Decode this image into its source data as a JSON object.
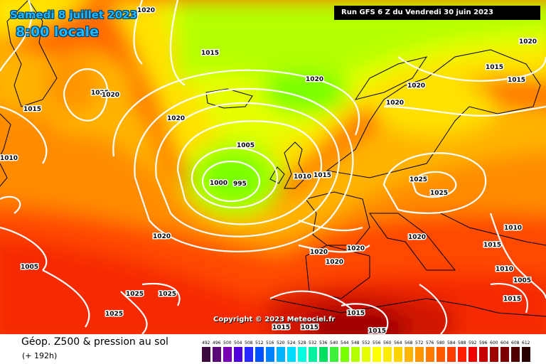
{
  "header": {
    "date": "Samedi 8 juillet 2023",
    "time": "8:00 locale",
    "run": "Run GFS 6 Z du Vendredi 30 juin 2023"
  },
  "copyright": "Copyright © 2023 Meteociel.fr",
  "footer": {
    "product": "Géop. Z500 & pression au sol",
    "forecast_hours": "(+ 192h)"
  },
  "legend": {
    "ticks": [
      "492",
      "496",
      "500",
      "504",
      "508",
      "512",
      "516",
      "520",
      "524",
      "528",
      "532",
      "536",
      "540",
      "544",
      "548",
      "552",
      "556",
      "560",
      "564",
      "568",
      "572",
      "576",
      "580",
      "584",
      "588",
      "592",
      "596",
      "600",
      "604",
      "608",
      "612"
    ],
    "colors": [
      "#3c0a3c",
      "#5a0a78",
      "#7800b4",
      "#5000dc",
      "#2828ff",
      "#0050ff",
      "#0082ff",
      "#00b4ff",
      "#00dcff",
      "#00ffe0",
      "#00f0a0",
      "#00e060",
      "#3cf03c",
      "#78ff00",
      "#b4ff00",
      "#e6ff00",
      "#ffff00",
      "#ffeb00",
      "#ffd200",
      "#ffb400",
      "#ff9600",
      "#ff7800",
      "#ff5a00",
      "#ff3c00",
      "#ff1e00",
      "#f00000",
      "#c80000",
      "#a00000",
      "#780000",
      "#500000",
      "#280000"
    ]
  },
  "isobar_labels": [
    "1020",
    "1015",
    "1025",
    "1020",
    "1015",
    "1020",
    "1010",
    "1020",
    "1020",
    "1020",
    "1005",
    "1000",
    "995",
    "1010",
    "1015",
    "1025",
    "1025",
    "1020",
    "1015",
    "1010",
    "1005",
    "1020",
    "1020",
    "1020",
    "1020",
    "1025",
    "1025",
    "1025",
    "1015",
    "1015",
    "1015",
    "1015",
    "1015",
    "1015",
    "1020",
    "1015",
    "1010",
    "1005"
  ]
}
